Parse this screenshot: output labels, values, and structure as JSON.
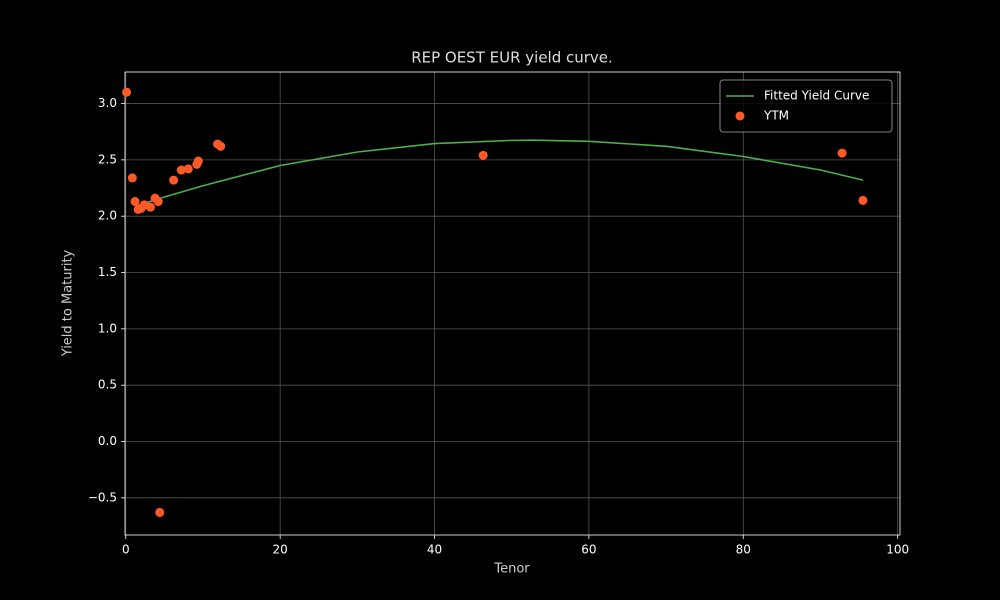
{
  "chart_data": {
    "type": "scatter",
    "title": "REP OEST EUR yield curve.",
    "xlabel": "Tenor",
    "ylabel": "Yield to Maturity",
    "xlim": [
      -0.1,
      100.3
    ],
    "ylim": [
      -0.83,
      3.28
    ],
    "xticks": [
      0,
      20,
      40,
      60,
      80,
      100
    ],
    "yticks": [
      {
        "value": -0.5,
        "label": "−0.5"
      },
      {
        "value": 0,
        "label": "0.0"
      },
      0.5,
      {
        "value": 1,
        "label": "1.0"
      },
      1.5,
      {
        "value": 2,
        "label": "2.0"
      },
      2.5,
      {
        "value": 3,
        "label": "3.0"
      }
    ],
    "grid": true,
    "legend": "upper right",
    "series": [
      {
        "name": "Fitted Yield Curve",
        "type": "line",
        "color": "#4caf50",
        "x": [
          1.3,
          5,
          10,
          20,
          30,
          40,
          50,
          53,
          60,
          70,
          80,
          90,
          95.5
        ],
        "values": [
          2.09,
          2.17,
          2.27,
          2.45,
          2.57,
          2.645,
          2.673,
          2.675,
          2.665,
          2.62,
          2.53,
          2.41,
          2.32
        ]
      },
      {
        "name": "YTM",
        "type": "scatter",
        "color": "#ff5a26",
        "x": [
          0.1,
          0.85,
          1.2,
          1.6,
          2.0,
          2.4,
          3.2,
          3.8,
          4.2,
          4.4,
          6.2,
          7.2,
          8.1,
          9.2,
          9.4,
          11.9,
          12.3,
          46.3,
          92.8,
          95.5
        ],
        "values": [
          3.1,
          2.34,
          2.13,
          2.06,
          2.07,
          2.1,
          2.08,
          2.16,
          2.13,
          -0.63,
          2.32,
          2.41,
          2.42,
          2.46,
          2.49,
          2.64,
          2.62,
          2.54,
          2.56,
          2.14
        ]
      }
    ]
  }
}
